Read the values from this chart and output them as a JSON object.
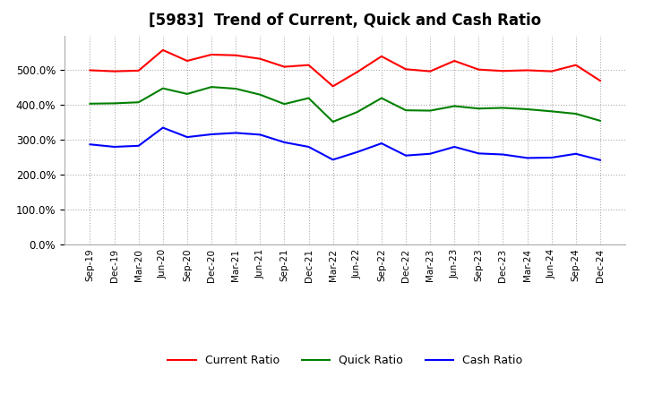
{
  "title": "[5983]  Trend of Current, Quick and Cash Ratio",
  "x_labels": [
    "Sep-19",
    "Dec-19",
    "Mar-20",
    "Jun-20",
    "Sep-20",
    "Dec-20",
    "Mar-21",
    "Jun-21",
    "Sep-21",
    "Dec-21",
    "Mar-22",
    "Jun-22",
    "Sep-22",
    "Dec-22",
    "Mar-23",
    "Jun-23",
    "Sep-23",
    "Dec-23",
    "Mar-24",
    "Jun-24",
    "Sep-24",
    "Dec-24"
  ],
  "current_ratio": [
    500,
    497,
    499,
    558,
    527,
    545,
    543,
    533,
    510,
    515,
    454,
    495,
    540,
    503,
    497,
    527,
    502,
    498,
    500,
    497,
    515,
    470
  ],
  "quick_ratio": [
    404,
    405,
    408,
    448,
    432,
    452,
    447,
    430,
    403,
    420,
    352,
    380,
    420,
    385,
    384,
    397,
    390,
    392,
    388,
    382,
    375,
    355
  ],
  "cash_ratio": [
    287,
    280,
    283,
    335,
    308,
    316,
    320,
    315,
    293,
    280,
    243,
    265,
    290,
    255,
    260,
    280,
    261,
    258,
    248,
    249,
    260,
    242
  ],
  "current_color": "#FF0000",
  "quick_color": "#008000",
  "cash_color": "#0000FF",
  "background_color": "#FFFFFF",
  "grid_color": "#AAAAAA",
  "ylim": [
    0,
    600
  ],
  "yticks": [
    0,
    100,
    200,
    300,
    400,
    500
  ],
  "title_fontsize": 12,
  "legend_labels": [
    "Current Ratio",
    "Quick Ratio",
    "Cash Ratio"
  ]
}
